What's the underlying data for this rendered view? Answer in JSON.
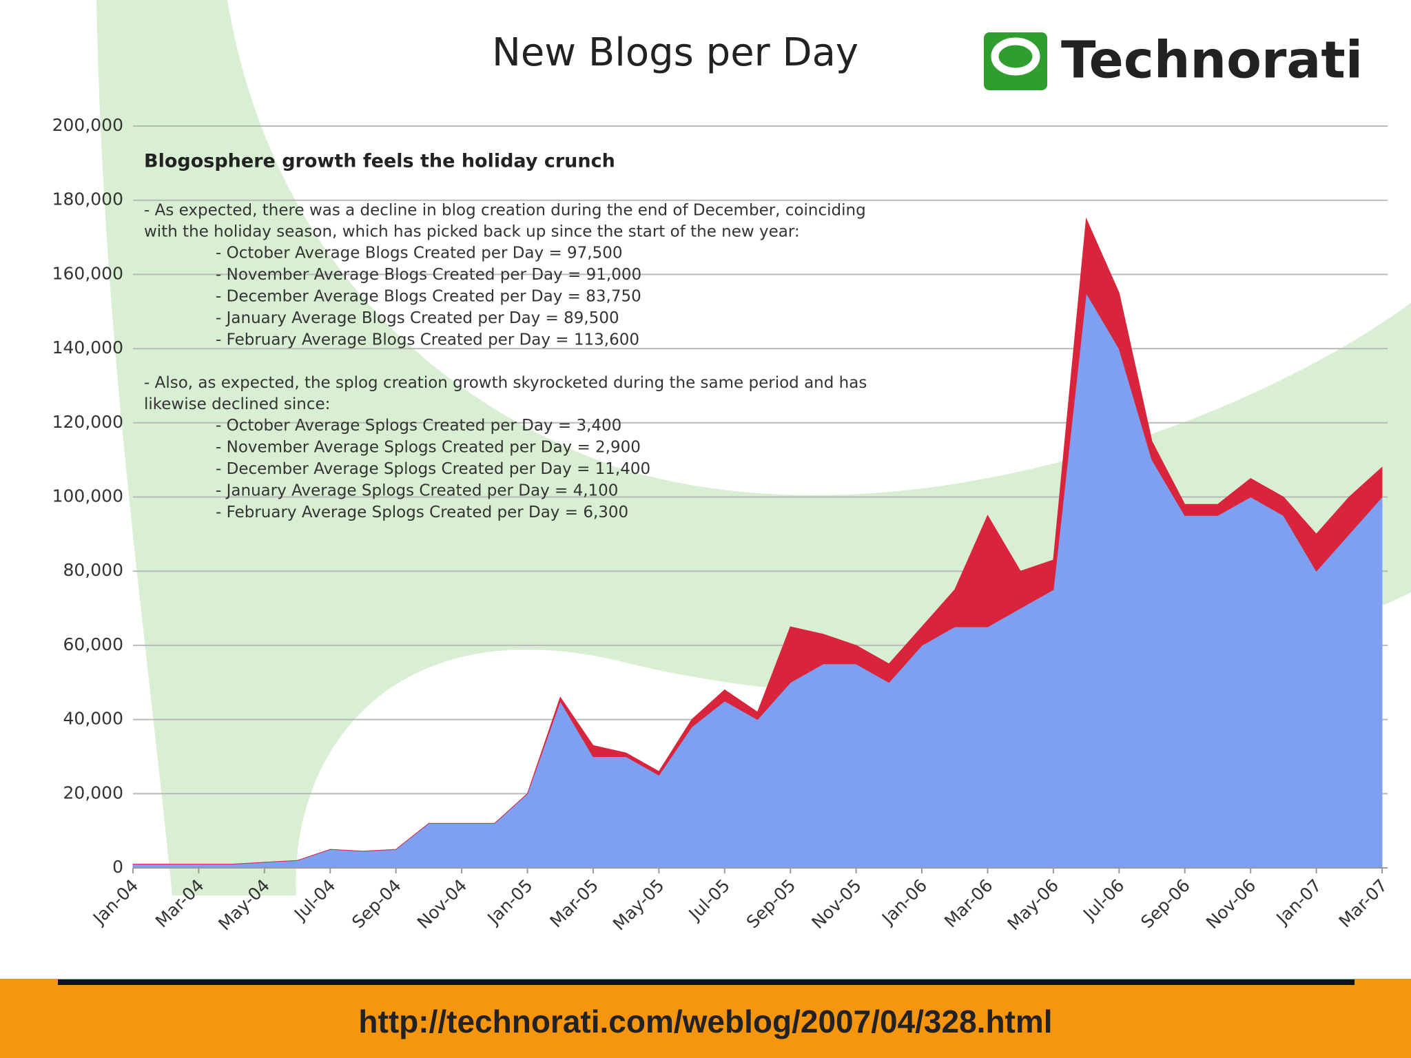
{
  "header": {
    "logo": "Technorati"
  },
  "chart_data": {
    "type": "area",
    "title": "New Blogs per Day",
    "stacked": true,
    "categories": [
      "Jan-04",
      null,
      "Mar-04",
      null,
      "May-04",
      null,
      "Jul-04",
      null,
      "Sep-04",
      null,
      "Nov-04",
      null,
      "Jan-05",
      null,
      "Mar-05",
      null,
      "May-05",
      null,
      "Jul-05",
      null,
      "Sep-05",
      null,
      "Nov-05",
      null,
      "Jan-06",
      null,
      "Mar-06",
      null,
      "May-06",
      null,
      "Jul-06",
      null,
      "Sep-06",
      null,
      "Nov-06",
      null,
      "Jan-07",
      null,
      "Mar-07"
    ],
    "series": [
      {
        "color": "#7f9ff0",
        "values": [
          1000,
          1000,
          1000,
          1000,
          1500,
          2000,
          5000,
          4500,
          5000,
          12000,
          12000,
          12000,
          20000,
          45000,
          30000,
          30000,
          25000,
          38000,
          45000,
          40000,
          50000,
          55000,
          55000,
          50000,
          60000,
          65000,
          65000,
          70000,
          75000,
          155000,
          140000,
          110000,
          95000,
          95000,
          100000,
          95000,
          80000,
          90000,
          100000
        ]
      },
      {
        "color": "#d8253c",
        "values": [
          0,
          0,
          0,
          0,
          0,
          0,
          0,
          0,
          0,
          0,
          0,
          0,
          0,
          1000,
          3000,
          1000,
          1000,
          2000,
          3000,
          2000,
          15000,
          8000,
          5000,
          5000,
          5000,
          10000,
          30000,
          10000,
          8000,
          20000,
          15000,
          5000,
          3000,
          3000,
          5000,
          5000,
          10000,
          10000,
          8000
        ]
      }
    ],
    "ylim": [
      0,
      200000
    ],
    "yticks": [
      0,
      {
        "value": 20000,
        "label": "20,000"
      },
      {
        "value": 40000,
        "label": "40,000"
      },
      {
        "value": 60000,
        "label": "60,000"
      },
      {
        "value": 80000,
        "label": "80,000"
      },
      {
        "value": 100000,
        "label": "100,000"
      },
      {
        "value": 120000,
        "label": "120,000"
      },
      {
        "value": 140000,
        "label": "140,000"
      },
      {
        "value": 160000,
        "label": "160,000"
      },
      {
        "value": 180000,
        "label": "180,000"
      },
      {
        "value": 200000,
        "label": "200,000"
      }
    ],
    "grid": true,
    "annotation_title": "Blogosphere growth feels the holiday crunch",
    "annotations": [
      {
        "intro": [
          "- As expected, there was a decline in blog creation during the end of December, coinciding",
          "with the holiday season, which has picked back up since the start of the new year:"
        ],
        "items": [
          "- October Average Blogs Created per Day = 97,500",
          "- November Average Blogs Created per Day = 91,000",
          "- December Average Blogs Created per Day = 83,750",
          "- January Average Blogs Created per Day = 89,500",
          "- February Average Blogs Created per Day = 113,600"
        ]
      },
      {
        "intro": [
          "- Also, as expected, the splog creation growth skyrocketed during the same period and has",
          "likewise declined since:"
        ],
        "items": [
          "- October Average Splogs Created per Day = 3,400",
          "- November Average Splogs Created per Day = 2,900",
          "- December Average Splogs Created per Day = 11,400",
          "- January Average Splogs Created per Day = 4,100",
          "- February Average Splogs Created per Day = 6,300"
        ]
      }
    ]
  },
  "footer": {
    "url": "http://technorati.com/weblog/2007/04/328.html"
  }
}
